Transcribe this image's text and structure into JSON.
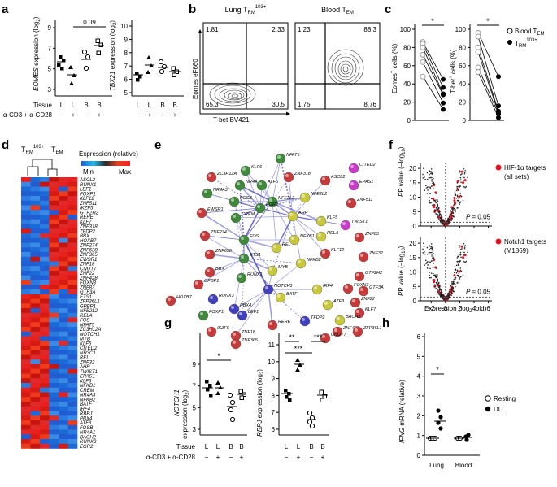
{
  "panels": {
    "a": "a",
    "b": "b",
    "c": "c",
    "d": "d",
    "e": "e",
    "f": "f",
    "g": "g",
    "h": "h"
  },
  "panel_a": {
    "left": {
      "ylabel_gene": "EOMES",
      "ylabel_rest": " expression (log",
      "ylabel_sub": "2",
      "ylabel_end": ")",
      "yticks": [
        "3",
        "5",
        "7",
        "9"
      ],
      "pvalue": "0.09"
    },
    "right": {
      "ylabel_gene": "TBX21",
      "ylabel_rest": " expression (log",
      "ylabel_sub": "2",
      "ylabel_end": ")",
      "yticks": [
        "5",
        "6",
        "7",
        "8",
        "9",
        "10"
      ]
    },
    "row1_label": "Tissue",
    "row2_label": "α-CD3 + α-CD28",
    "tissue": [
      "L",
      "L",
      "B",
      "B"
    ],
    "stim": [
      "−",
      "+",
      "−",
      "+"
    ]
  },
  "panel_b": {
    "left_title": "Lung T",
    "left_title_sub": "RM",
    "left_title_sup": "103+",
    "right_title": "Blood T",
    "right_title_sub": "EM",
    "ylabel": "Eomes eF660",
    "xlabel": "T-bet BV421",
    "left_quadrants": [
      "1.81",
      "2.33",
      "65.3",
      "30.5"
    ],
    "right_quadrants": [
      "1.23",
      "88.3",
      "1.75",
      "8.76"
    ]
  },
  "panel_c": {
    "left_ylabel": "Eomes",
    "left_ylabel_rest": " cells (%)",
    "right_ylabel": "T-bet",
    "right_ylabel_rest": " cells (%)",
    "yticks": [
      "0",
      "20",
      "40",
      "60",
      "80",
      "100"
    ],
    "star": "*",
    "legend_blood": "Blood T",
    "legend_blood_sub": "EM",
    "legend_lung": "T",
    "legend_lung_sub": "RM",
    "legend_lung_sup": "103+"
  },
  "panel_d": {
    "col_title_trm": "T",
    "col_title_trm_sub": "RM",
    "col_title_trm_sup": "103+",
    "col_title_tem": "T",
    "col_title_tem_sub": "EM",
    "expression_label": "Expression (relative)",
    "min_label": "Min",
    "max_label": "Max",
    "genes": [
      "ASCL2",
      "RUNX1",
      "LEF1",
      "FOXP1",
      "KLF12",
      "ZNF511",
      "IKZF5",
      "GTF2H2",
      "RERE",
      "KLF7",
      "ZNF318",
      "TFDP2",
      "BBX",
      "HOXB7",
      "ZNF274",
      "ZNF638",
      "ZNF365",
      "EWSR1",
      "ZNF18",
      "CNOT7",
      "ZNF22",
      "ZNF428",
      "FOXN3",
      "ZNF83",
      "GTF3A",
      "ETS1",
      "ZFP36L1",
      "GPBP1",
      "NFE2L2",
      "RELA",
      "FOS",
      "NFAT5",
      "ZC3H12A",
      "NOTCH1",
      "MYB",
      "KLF5",
      "CITED2",
      "NR3C1",
      "REL",
      "ZNF32",
      "AHR",
      "TWIST1",
      "EPAS1",
      "KLF6",
      "NFKB1",
      "CREM",
      "NR4A3",
      "NFKB2",
      "BATF",
      "IRF4",
      "RBPJ",
      "PBX4",
      "ATF3",
      "FOSB",
      "NR4A1",
      "BACH2",
      "RUNX3",
      "EGR2"
    ]
  },
  "panel_e": {
    "nodes": [
      {
        "label": "NFAT5",
        "color": "#3f8a3a"
      },
      {
        "label": "KLF6",
        "color": "#3f8a3a"
      },
      {
        "label": "CITED2",
        "color": "#c83cc8"
      },
      {
        "label": "ZC3H12A",
        "color": "#c83a3a"
      },
      {
        "label": "NR4A1",
        "color": "#3f8a3a"
      },
      {
        "label": "ATF6",
        "color": "#3f8a3a"
      },
      {
        "label": "ZNF318",
        "color": "#c83a3a"
      },
      {
        "label": "ASCL2",
        "color": "#c83a3a"
      },
      {
        "label": "EPAS1",
        "color": "#c83cc8"
      },
      {
        "label": "NR4A3",
        "color": "#3f8a3a"
      },
      {
        "label": "FOSB",
        "color": "#3f8a3a"
      },
      {
        "label": "NFE2L2",
        "color": "#3f8a3a"
      },
      {
        "label": "NFE2L2",
        "color": "#c8c83a"
      },
      {
        "label": "ZNF511",
        "color": "#c83a3a"
      },
      {
        "label": "EGR2",
        "color": "#3f8a3a"
      },
      {
        "label": "EWSR1",
        "color": "#c83a3a"
      },
      {
        "label": "CREM",
        "color": "#3f8a3a"
      },
      {
        "label": "AHR",
        "color": "#c8c83a"
      },
      {
        "label": "KLF5",
        "color": "#c8c83a"
      },
      {
        "label": "TWIST1",
        "color": "#c83cc8"
      },
      {
        "label": "ZNF274",
        "color": "#c83a3a"
      },
      {
        "label": "FOS",
        "color": "#3f8a3a"
      },
      {
        "label": "NFKB1",
        "color": "#c8c83a"
      },
      {
        "label": "RELA",
        "color": "#c8c83a"
      },
      {
        "label": "ZNF83",
        "color": "#c83a3a"
      },
      {
        "label": "ZNF638",
        "color": "#c83a3a"
      },
      {
        "label": "REL",
        "color": "#c8c83a"
      },
      {
        "label": "KLF12",
        "color": "#c83a3a"
      },
      {
        "label": "ZNF32",
        "color": "#c83a3a"
      },
      {
        "label": "BBX",
        "color": "#c83a3a"
      },
      {
        "label": "ETS1",
        "color": "#3f8a3a"
      },
      {
        "label": "NFKB2",
        "color": "#c8c83a"
      },
      {
        "label": "GTF2H2",
        "color": "#c83a3a"
      },
      {
        "label": "GPBP1",
        "color": "#c83a3a"
      },
      {
        "label": "RUNX1",
        "color": "#3f8a3a"
      },
      {
        "label": "MYB",
        "color": "#c8c83a"
      },
      {
        "label": "FOXN3",
        "color": "#c83a3a"
      },
      {
        "label": "GTF3A",
        "color": "#c83a3a"
      },
      {
        "label": "NOTCH1",
        "color": "#4040c0"
      },
      {
        "label": "IRF4",
        "color": "#c8c83a"
      },
      {
        "label": "ZNF22",
        "color": "#c83a3a"
      },
      {
        "label": "HOXB7",
        "color": "#c83a3a"
      },
      {
        "label": "RUNX3",
        "color": "#4040c0"
      },
      {
        "label": "BATF",
        "color": "#c8c83a"
      },
      {
        "label": "ATF3",
        "color": "#c8c83a"
      },
      {
        "label": "KLF7",
        "color": "#c83a3a"
      },
      {
        "label": "FOXP1",
        "color": "#3f8a3a"
      },
      {
        "label": "PBX4",
        "color": "#4040c0"
      },
      {
        "label": "LEF1",
        "color": "#4040c0"
      },
      {
        "label": "BACH2",
        "color": "#c8c83a"
      },
      {
        "label": "ZNF428",
        "color": "#c83a3a"
      },
      {
        "label": "ZFP36L1",
        "color": "#c83a3a"
      },
      {
        "label": "IKZF5",
        "color": "#c83a3a"
      },
      {
        "label": "ZNF18",
        "color": "#c83a3a"
      },
      {
        "label": "ZNF365",
        "color": "#c83a3a"
      },
      {
        "label": "RERE",
        "color": "#c83a3a"
      },
      {
        "label": "TFDP2",
        "color": "#4040c0"
      },
      {
        "label": "CNOT7",
        "color": "#c83a3a"
      }
    ]
  },
  "panel_f": {
    "ylabel": "P value (−log",
    "ylabel_sub": "10",
    "ylabel_end": ")",
    "xlabel": "Expression (log",
    "xlabel_sub": "2",
    "xlabel_end": " fold)",
    "yticks": [
      "0",
      "5",
      "10",
      "15",
      "20"
    ],
    "xticks": [
      "−2",
      "0",
      "2",
      "4",
      "6"
    ],
    "top_legend_1": "HIF-1α targets",
    "top_legend_2": "(all sets)",
    "bottom_legend_1": "Notch1 targets",
    "bottom_legend_2": "(M1869)",
    "pline": "P = 0.05",
    "highlight_color": "#e8101e"
  },
  "panel_g": {
    "left_ylabel_gene": "NOTCH1",
    "left_ylabel_rest": "expression (log",
    "left_ylabel_sub": "2",
    "left_ylabel_end": ")",
    "left_yticks": [
      "3",
      "5",
      "7",
      "9"
    ],
    "left_star": "*",
    "right_ylabel_gene": "RBPJ",
    "right_ylabel_rest": " expression (log",
    "right_ylabel_sub": "2",
    "right_ylabel_end": ")",
    "right_yticks": [
      "6",
      "7",
      "8",
      "9",
      "10",
      "11"
    ],
    "right_stars": [
      "**",
      "***",
      "***"
    ],
    "row1_label": "Tissue",
    "row2_label": "α-CD3 + α-CD28",
    "tissue": [
      "L",
      "L",
      "B",
      "B"
    ],
    "stim": [
      "−",
      "+",
      "−",
      "+"
    ]
  },
  "panel_h": {
    "ylabel_gene": "IFNG",
    "ylabel_rest": " mRNA (relative)",
    "yticks": [
      "0",
      "1",
      "2",
      "3",
      "4",
      "5",
      "6"
    ],
    "xcats": [
      "Lung",
      "Blood"
    ],
    "star": "*",
    "legend_resting": "Resting",
    "legend_dll": "DLL"
  }
}
